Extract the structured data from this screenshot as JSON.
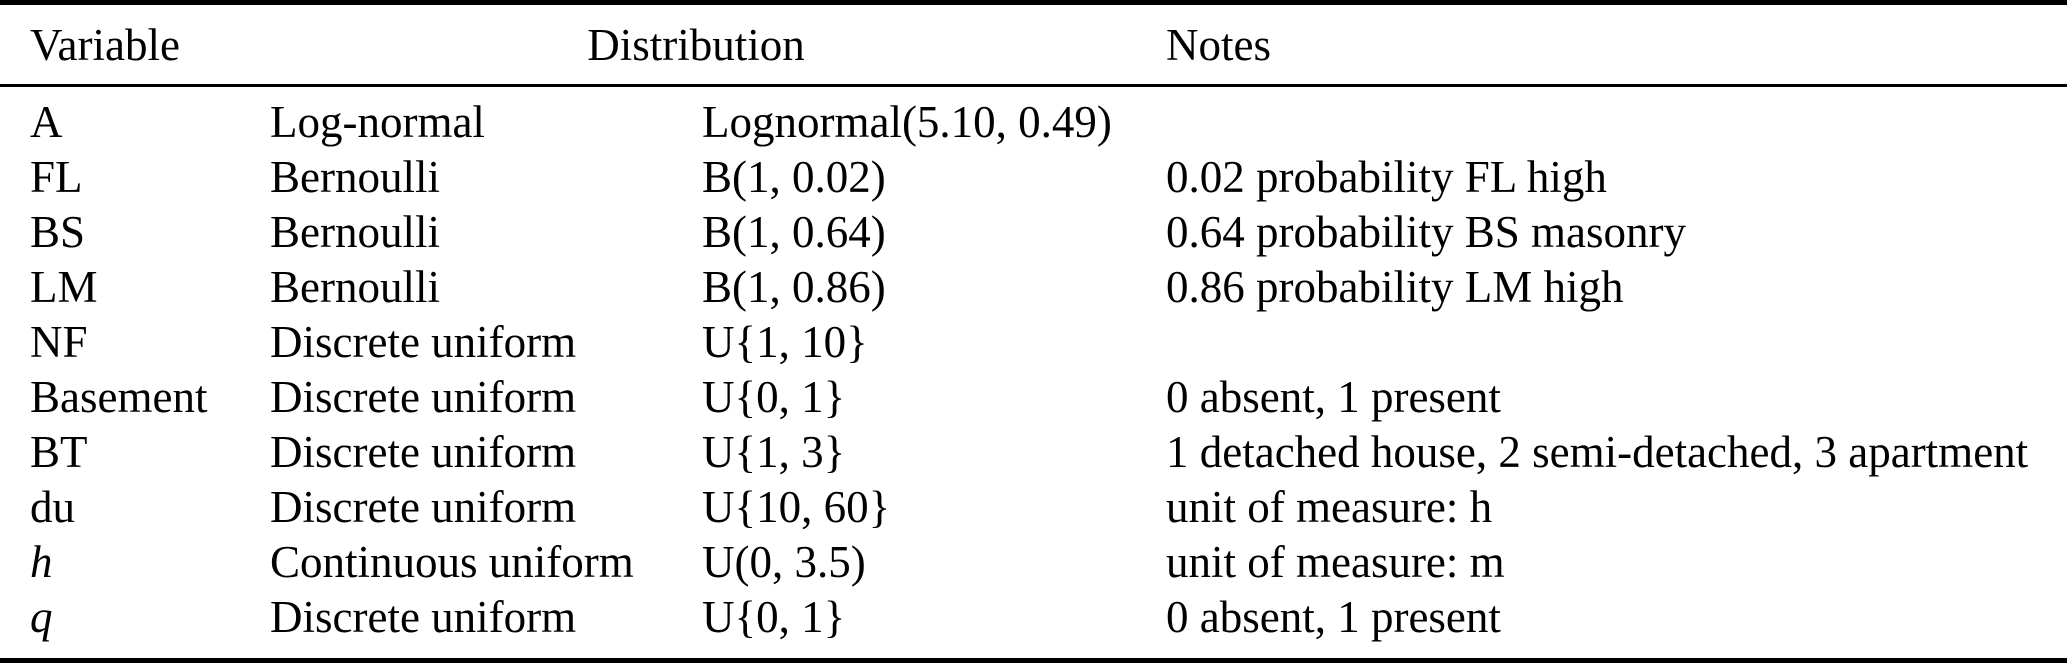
{
  "table": {
    "headers": {
      "variable": "Variable",
      "distribution": "Distribution",
      "notes": "Notes"
    },
    "rows": [
      {
        "variable": "A",
        "dist_name": "Log-normal",
        "dist_params": "Lognormal(5.10, 0.49)",
        "notes": ""
      },
      {
        "variable": "FL",
        "dist_name": "Bernoulli",
        "dist_params": "B(1, 0.02)",
        "notes": "0.02 probability FL high"
      },
      {
        "variable": "BS",
        "dist_name": "Bernoulli",
        "dist_params": "B(1, 0.64)",
        "notes": "0.64 probability BS masonry"
      },
      {
        "variable": "LM",
        "dist_name": "Bernoulli",
        "dist_params": "B(1, 0.86)",
        "notes": "0.86 probability LM high"
      },
      {
        "variable": "NF",
        "dist_name": "Discrete uniform",
        "dist_params": "U{1, 10}",
        "notes": ""
      },
      {
        "variable": "Basement",
        "dist_name": "Discrete uniform",
        "dist_params": "U{0, 1}",
        "notes": "0 absent, 1 present"
      },
      {
        "variable": "BT",
        "dist_name": "Discrete uniform",
        "dist_params": "U{1, 3}",
        "notes": "1 detached house, 2 semi-detached, 3 apartment"
      },
      {
        "variable": "du",
        "dist_name": "Discrete uniform",
        "dist_params": "U{10, 60}",
        "notes": "unit of measure: h"
      },
      {
        "variable": "h",
        "dist_name": "Continuous uniform",
        "dist_params": "U(0, 3.5)",
        "notes": "unit of measure: m"
      },
      {
        "variable": "q",
        "dist_name": "Discrete uniform",
        "dist_params": "U{0, 1}",
        "notes": "0 absent, 1 present"
      }
    ]
  },
  "colors": {
    "text": "#000000",
    "background": "#ffffff",
    "rule": "#000000"
  }
}
